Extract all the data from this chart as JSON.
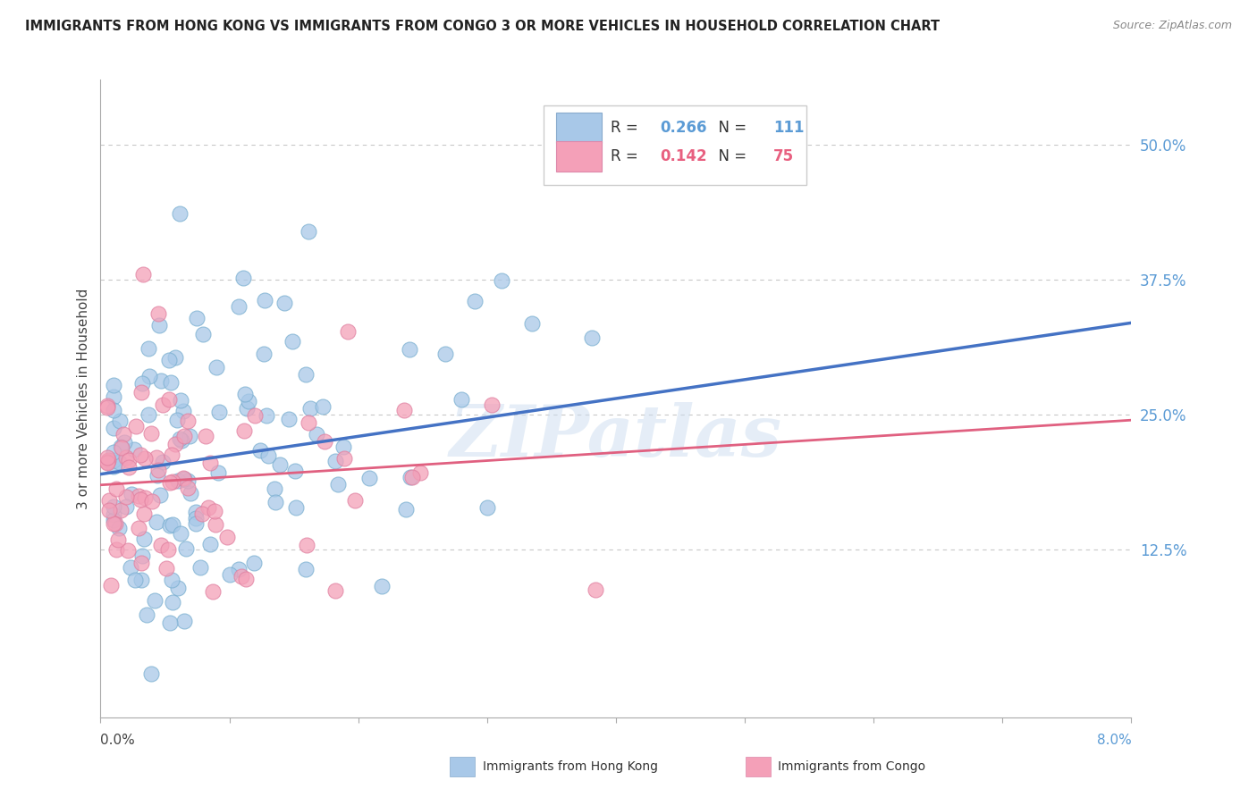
{
  "title": "IMMIGRANTS FROM HONG KONG VS IMMIGRANTS FROM CONGO 3 OR MORE VEHICLES IN HOUSEHOLD CORRELATION CHART",
  "source": "Source: ZipAtlas.com",
  "ylabel": "3 or more Vehicles in Household",
  "right_ytick_vals": [
    0.5,
    0.375,
    0.25,
    0.125
  ],
  "right_ytick_labels": [
    "50.0%",
    "37.5%",
    "25.0%",
    "12.5%"
  ],
  "xmin": 0.0,
  "xmax": 0.08,
  "ymin": -0.03,
  "ymax": 0.56,
  "legend_hk_r": "0.266",
  "legend_hk_n": "111",
  "legend_congo_r": "0.142",
  "legend_congo_n": "75",
  "color_hk": "#a8c8e8",
  "color_congo": "#f4a0b8",
  "color_hk_line": "#4472c4",
  "color_congo_line": "#e06080",
  "color_right_axis": "#5b9bd5",
  "watermark": "ZIPatlas",
  "background_color": "#ffffff",
  "grid_color": "#c8c8c8",
  "hk_line_y0": 0.195,
  "hk_line_y1": 0.335,
  "congo_line_y0": 0.185,
  "congo_line_y1": 0.245
}
